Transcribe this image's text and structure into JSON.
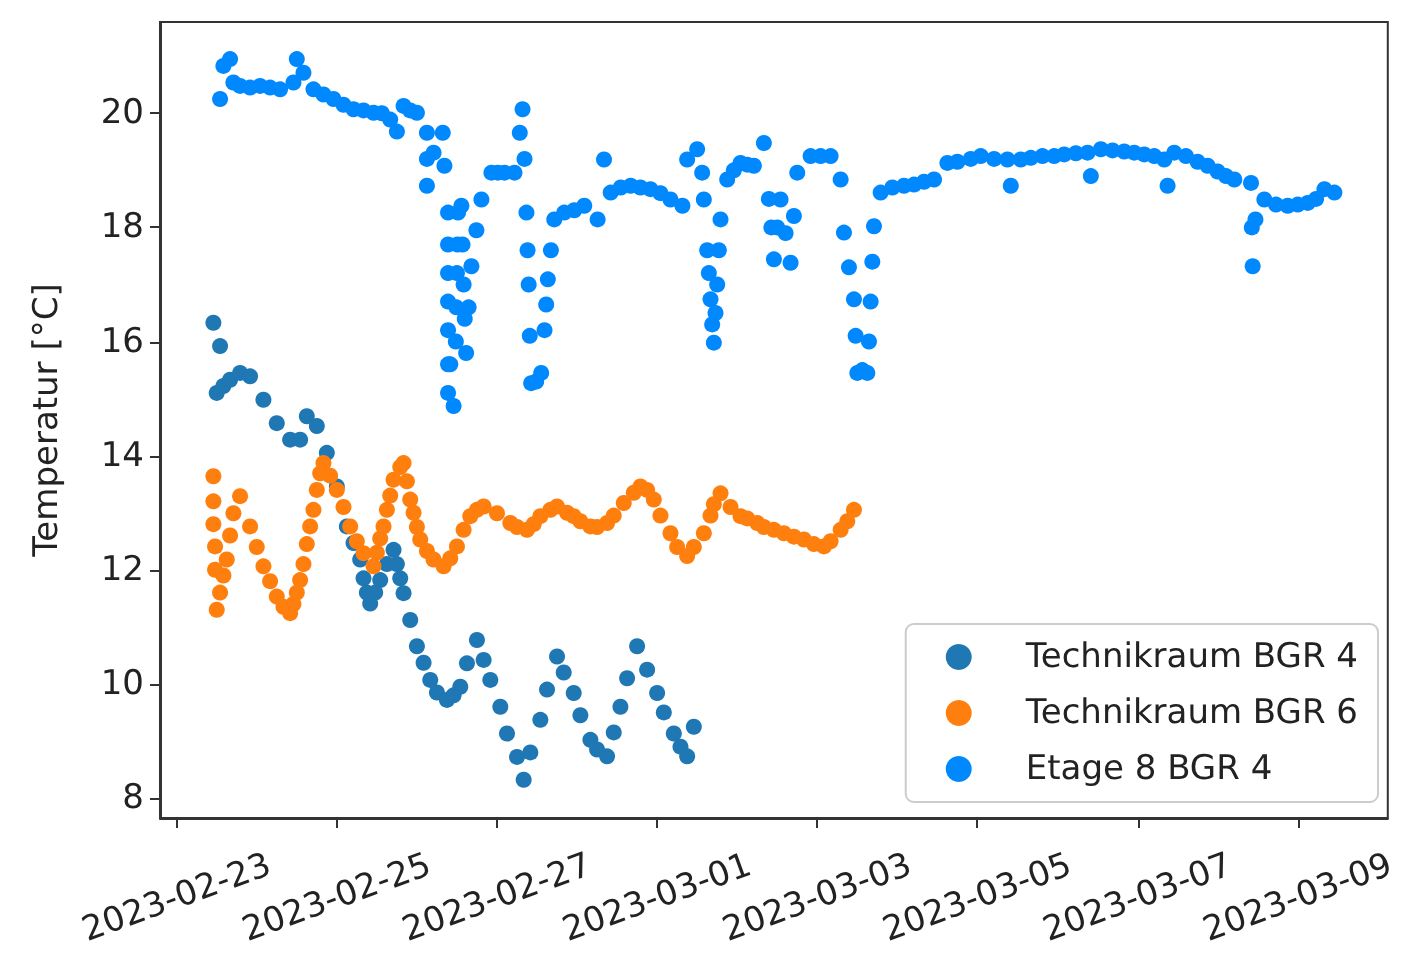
{
  "chart_data": {
    "type": "scatter",
    "ylabel": "Temperatur [°C]",
    "xlim": [
      "2023-02-22T19:00",
      "2023-03-10T03:00"
    ],
    "xticks": [
      "2023-02-23",
      "2023-02-25",
      "2023-02-27",
      "2023-03-01",
      "2023-03-03",
      "2023-03-05",
      "2023-03-07",
      "2023-03-09"
    ],
    "ylim": [
      7.65,
      21.6
    ],
    "yticks": [
      8,
      10,
      12,
      14,
      16,
      18,
      20
    ],
    "grid": false,
    "legend": "bottom right",
    "marker": "circle",
    "series": [
      {
        "name": "Technikraum BGR 4",
        "color": "#1f77b4",
        "x": [
          "2023-02-23T11:00",
          "2023-02-23T12:00",
          "2023-02-23T13:00",
          "2023-02-23T14:00",
          "2023-02-23T16:00",
          "2023-02-23T19:00",
          "2023-02-23T22:00",
          "2023-02-24T02:00",
          "2023-02-24T06:00",
          "2023-02-24T10:00",
          "2023-02-24T13:00",
          "2023-02-24T15:00",
          "2023-02-24T18:00",
          "2023-02-24T21:00",
          "2023-02-25T00:00",
          "2023-02-25T03:00",
          "2023-02-25T05:00",
          "2023-02-25T07:00",
          "2023-02-25T08:00",
          "2023-02-25T09:00",
          "2023-02-25T10:00",
          "2023-02-25T11:30",
          "2023-02-25T13:00",
          "2023-02-25T15:00",
          "2023-02-25T17:00",
          "2023-02-25T18:00",
          "2023-02-25T19:00",
          "2023-02-25T20:00",
          "2023-02-25T22:00",
          "2023-02-26T00:00",
          "2023-02-26T02:00",
          "2023-02-26T04:00",
          "2023-02-26T06:00",
          "2023-02-26T09:00",
          "2023-02-26T11:00",
          "2023-02-26T13:00",
          "2023-02-26T15:00",
          "2023-02-26T18:00",
          "2023-02-26T20:00",
          "2023-02-26T22:00",
          "2023-02-27T01:00",
          "2023-02-27T03:00",
          "2023-02-27T06:00",
          "2023-02-27T08:00",
          "2023-02-27T10:00",
          "2023-02-27T13:00",
          "2023-02-27T15:00",
          "2023-02-27T18:00",
          "2023-02-27T20:00",
          "2023-02-27T23:00",
          "2023-02-28T01:00",
          "2023-02-28T04:00",
          "2023-02-28T06:00",
          "2023-02-28T09:00",
          "2023-02-28T11:00",
          "2023-02-28T13:00",
          "2023-02-28T15:00",
          "2023-02-28T18:00",
          "2023-02-28T21:00",
          "2023-03-01T00:00",
          "2023-03-01T02:00",
          "2023-03-01T05:00",
          "2023-03-01T07:00",
          "2023-03-01T09:00",
          "2023-03-01T11:00"
        ],
        "values": [
          16.33,
          15.1,
          15.92,
          15.22,
          15.33,
          15.45,
          15.39,
          14.98,
          14.57,
          14.28,
          14.28,
          14.69,
          14.52,
          14.05,
          13.46,
          12.76,
          12.47,
          12.18,
          11.85,
          11.6,
          11.41,
          11.6,
          11.82,
          12.1,
          12.35,
          12.1,
          11.85,
          11.59,
          11.12,
          10.66,
          10.37,
          10.07,
          9.85,
          9.72,
          9.8,
          9.95,
          10.36,
          10.77,
          10.42,
          10.07,
          9.6,
          9.13,
          8.72,
          8.32,
          8.8,
          9.37,
          9.9,
          10.48,
          10.2,
          9.84,
          9.45,
          9.02,
          8.85,
          8.73,
          9.15,
          9.6,
          10.1,
          10.66,
          10.25,
          9.84,
          9.5,
          9.13,
          8.9,
          8.73,
          9.25
        ]
      },
      {
        "name": "Technikraum BGR 6",
        "color": "#ff7f0e",
        "x": [
          "2023-02-23T11:00",
          "2023-02-23T11:00",
          "2023-02-23T11:00",
          "2023-02-23T11:30",
          "2023-02-23T11:30",
          "2023-02-23T12:00",
          "2023-02-23T13:00",
          "2023-02-23T14:00",
          "2023-02-23T15:00",
          "2023-02-23T16:00",
          "2023-02-23T17:00",
          "2023-02-23T19:00",
          "2023-02-23T22:00",
          "2023-02-24T00:00",
          "2023-02-24T02:00",
          "2023-02-24T04:00",
          "2023-02-24T06:00",
          "2023-02-24T08:00",
          "2023-02-24T10:00",
          "2023-02-24T11:00",
          "2023-02-24T12:00",
          "2023-02-24T13:00",
          "2023-02-24T14:00",
          "2023-02-24T15:00",
          "2023-02-24T16:00",
          "2023-02-24T17:00",
          "2023-02-24T18:00",
          "2023-02-24T19:00",
          "2023-02-24T20:00",
          "2023-02-24T22:00",
          "2023-02-25T00:00",
          "2023-02-25T02:00",
          "2023-02-25T04:00",
          "2023-02-25T06:00",
          "2023-02-25T08:00",
          "2023-02-25T11:00",
          "2023-02-25T12:00",
          "2023-02-25T13:00",
          "2023-02-25T14:00",
          "2023-02-25T15:00",
          "2023-02-25T16:00",
          "2023-02-25T17:00",
          "2023-02-25T19:00",
          "2023-02-25T20:00",
          "2023-02-25T21:00",
          "2023-02-25T22:00",
          "2023-02-25T23:00",
          "2023-02-26T00:00",
          "2023-02-26T01:00",
          "2023-02-26T03:00",
          "2023-02-26T05:00",
          "2023-02-26T08:00",
          "2023-02-26T10:00",
          "2023-02-26T12:00",
          "2023-02-26T14:00",
          "2023-02-26T16:00",
          "2023-02-26T18:00",
          "2023-02-26T20:00",
          "2023-02-27T00:00",
          "2023-02-27T04:00",
          "2023-02-27T06:00",
          "2023-02-27T09:00",
          "2023-02-27T11:00",
          "2023-02-27T13:00",
          "2023-02-27T16:00",
          "2023-02-27T18:00",
          "2023-02-27T21:00",
          "2023-02-27T23:00",
          "2023-02-28T01:00",
          "2023-02-28T04:00",
          "2023-02-28T06:00",
          "2023-02-28T09:00",
          "2023-02-28T11:00",
          "2023-02-28T14:00",
          "2023-02-28T17:00",
          "2023-02-28T19:00",
          "2023-02-28T21:00",
          "2023-02-28T23:00",
          "2023-03-01T01:00",
          "2023-03-01T04:00",
          "2023-03-01T06:00",
          "2023-03-01T09:00",
          "2023-03-01T11:00",
          "2023-03-01T14:00",
          "2023-03-01T16:00",
          "2023-03-01T17:00",
          "2023-03-01T19:00",
          "2023-03-01T22:00",
          "2023-03-02T01:00",
          "2023-03-02T03:00",
          "2023-03-02T06:00",
          "2023-03-02T08:00",
          "2023-03-02T11:00",
          "2023-03-02T14:00",
          "2023-03-02T17:00",
          "2023-03-02T20:00",
          "2023-03-02T23:00",
          "2023-03-03T02:00",
          "2023-03-03T04:00",
          "2023-03-03T07:00",
          "2023-03-03T09:00",
          "2023-03-03T11:00"
        ],
        "values": [
          13.64,
          13.2,
          12.8,
          12.41,
          12.0,
          11.3,
          11.6,
          11.9,
          12.18,
          12.6,
          12.99,
          13.29,
          12.76,
          12.4,
          12.06,
          11.8,
          11.53,
          11.35,
          11.24,
          11.4,
          11.6,
          11.82,
          12.1,
          12.45,
          12.76,
          13.05,
          13.4,
          13.69,
          13.87,
          13.65,
          13.4,
          13.1,
          12.76,
          12.5,
          12.29,
          12.06,
          12.3,
          12.55,
          12.76,
          13.05,
          13.3,
          13.58,
          13.8,
          13.87,
          13.55,
          13.23,
          13.0,
          12.75,
          12.53,
          12.33,
          12.18,
          12.06,
          12.2,
          12.41,
          12.7,
          12.94,
          13.05,
          13.11,
          12.99,
          12.82,
          12.75,
          12.7,
          12.8,
          12.94,
          13.05,
          13.11,
          13.0,
          12.94,
          12.85,
          12.76,
          12.75,
          12.82,
          12.95,
          13.17,
          13.35,
          13.46,
          13.4,
          13.23,
          12.95,
          12.64,
          12.4,
          12.24,
          12.4,
          12.64,
          12.95,
          13.15,
          13.34,
          13.1,
          12.94,
          12.9,
          12.82,
          12.75,
          12.7,
          12.64,
          12.58,
          12.53,
          12.45,
          12.41,
          12.5,
          12.7,
          12.85,
          13.05
        ]
      },
      {
        "name": "Etage 8 BGR 4",
        "color": "#0088ff",
        "x": [
          "2023-02-23T13:00",
          "2023-02-23T14:00",
          "2023-02-23T16:00",
          "2023-02-23T17:00",
          "2023-02-23T19:00",
          "2023-02-23T22:00",
          "2023-02-24T01:00",
          "2023-02-24T04:00",
          "2023-02-24T07:00",
          "2023-02-24T11:00",
          "2023-02-24T12:00",
          "2023-02-24T14:00",
          "2023-02-24T17:00",
          "2023-02-24T20:00",
          "2023-02-24T23:00",
          "2023-02-25T02:00",
          "2023-02-25T05:00",
          "2023-02-25T08:00",
          "2023-02-25T11:00",
          "2023-02-25T13:30",
          "2023-02-25T16:00",
          "2023-02-25T18:00",
          "2023-02-25T20:00",
          "2023-02-25T22:00",
          "2023-02-26T00:00",
          "2023-02-26T03:00",
          "2023-02-26T03:00",
          "2023-02-26T03:00",
          "2023-02-26T05:00",
          "2023-02-26T07:45",
          "2023-02-26T08:15",
          "2023-02-26T09:20",
          "2023-02-26T09:20",
          "2023-02-26T09:20",
          "2023-02-26T09:20",
          "2023-02-26T09:20",
          "2023-02-26T09:20",
          "2023-02-26T09:20",
          "2023-02-26T10:00",
          "2023-02-26T11:00",
          "2023-02-26T11:40",
          "2023-02-26T11:50",
          "2023-02-26T12:00",
          "2023-02-26T12:10",
          "2023-02-26T12:20",
          "2023-02-26T13:20",
          "2023-02-26T13:40",
          "2023-02-26T14:00",
          "2023-02-26T14:20",
          "2023-02-26T14:45",
          "2023-02-26T15:30",
          "2023-02-26T16:20",
          "2023-02-26T17:50",
          "2023-02-26T19:20",
          "2023-02-26T22:20",
          "2023-02-27T00:15",
          "2023-02-27T02:15",
          "2023-02-27T05:15",
          "2023-02-27T06:50",
          "2023-02-27T07:40",
          "2023-02-27T08:15",
          "2023-02-27T08:50",
          "2023-02-27T09:10",
          "2023-02-27T09:30",
          "2023-02-27T09:50",
          "2023-02-27T10:15",
          "2023-02-27T11:45",
          "2023-02-27T13:15",
          "2023-02-27T14:15",
          "2023-02-27T14:45",
          "2023-02-27T15:15",
          "2023-02-27T16:10",
          "2023-02-27T17:10",
          "2023-02-27T20:10",
          "2023-02-27T23:10",
          "2023-02-28T02:10",
          "2023-02-28T06:10",
          "2023-02-28T08:05",
          "2023-02-28T10:05",
          "2023-02-28T13:05",
          "2023-02-28T16:05",
          "2023-02-28T19:00",
          "2023-02-28T22:00",
          "2023-03-01T01:00",
          "2023-03-01T04:00",
          "2023-03-01T07:35",
          "2023-03-01T09:00",
          "2023-03-01T12:00",
          "2023-03-01T13:30",
          "2023-03-01T14:00",
          "2023-03-01T15:00",
          "2023-03-01T15:30",
          "2023-03-01T16:00",
          "2023-03-01T16:30",
          "2023-03-01T17:00",
          "2023-03-01T17:30",
          "2023-03-01T18:00",
          "2023-03-01T18:30",
          "2023-03-01T19:00",
          "2023-03-01T21:00",
          "2023-03-01T23:00",
          "2023-03-02T01:00",
          "2023-03-02T03:00",
          "2023-03-02T05:00",
          "2023-03-02T08:00",
          "2023-03-02T09:30",
          "2023-03-02T10:15",
          "2023-03-02T11:00",
          "2023-03-02T12:00",
          "2023-03-02T13:00",
          "2023-03-02T14:30",
          "2023-03-02T16:00",
          "2023-03-02T17:00",
          "2023-03-02T18:00",
          "2023-03-02T22:00",
          "2023-03-03T01:00",
          "2023-03-03T04:00",
          "2023-03-03T07:00",
          "2023-03-03T08:00",
          "2023-03-03T09:30",
          "2023-03-03T11:00",
          "2023-03-03T11:30",
          "2023-03-03T12:00",
          "2023-03-03T13:30",
          "2023-03-03T15:00",
          "2023-03-03T15:30",
          "2023-03-03T16:00",
          "2023-03-03T16:30",
          "2023-03-03T17:00",
          "2023-03-03T19:00",
          "2023-03-03T22:30",
          "2023-03-04T02:00",
          "2023-03-04T05:00",
          "2023-03-04T08:00",
          "2023-03-04T11:00",
          "2023-03-04T15:00",
          "2023-03-04T18:00",
          "2023-03-04T22:00",
          "2023-03-05T01:00",
          "2023-03-05T05:00",
          "2023-03-05T09:00",
          "2023-03-05T10:00",
          "2023-03-05T13:00",
          "2023-03-05T16:00",
          "2023-03-05T19:30",
          "2023-03-05T23:00",
          "2023-03-06T02:00",
          "2023-03-06T05:30",
          "2023-03-06T09:00",
          "2023-03-06T10:00",
          "2023-03-06T13:00",
          "2023-03-06T16:30",
          "2023-03-06T20:00",
          "2023-03-06T23:00",
          "2023-03-07T02:00",
          "2023-03-07T05:00",
          "2023-03-07T08:00",
          "2023-03-07T09:00",
          "2023-03-07T11:00",
          "2023-03-07T14:30",
          "2023-03-07T18:00",
          "2023-03-07T21:00",
          "2023-03-08T00:00",
          "2023-03-08T02:30",
          "2023-03-08T05:00",
          "2023-03-08T10:00",
          "2023-03-08T10:15",
          "2023-03-08T10:30",
          "2023-03-08T11:20",
          "2023-03-08T14:00",
          "2023-03-08T17:30",
          "2023-03-08T21:00",
          "2023-03-09T00:00",
          "2023-03-09T03:00",
          "2023-03-09T05:30",
          "2023-03-09T08:00",
          "2023-03-09T11:00"
        ],
        "values": [
          20.25,
          20.83,
          20.95,
          20.54,
          20.48,
          20.45,
          20.48,
          20.45,
          20.42,
          20.54,
          20.95,
          20.71,
          20.42,
          20.33,
          20.25,
          20.15,
          20.07,
          20.05,
          20.01,
          20.0,
          19.89,
          19.68,
          20.13,
          20.05,
          20.01,
          19.66,
          19.2,
          18.73,
          19.31,
          19.66,
          19.08,
          18.26,
          17.7,
          17.2,
          16.7,
          16.2,
          15.6,
          15.1,
          15.6,
          14.87,
          16.0,
          16.6,
          17.2,
          17.7,
          18.26,
          18.38,
          17.7,
          17.0,
          16.4,
          15.8,
          16.6,
          17.32,
          17.95,
          18.49,
          18.96,
          18.96,
          18.96,
          18.96,
          19.66,
          20.07,
          19.2,
          18.26,
          17.6,
          17.0,
          16.1,
          15.27,
          15.3,
          15.45,
          16.2,
          16.65,
          17.09,
          17.6,
          18.14,
          18.26,
          18.3,
          18.38,
          18.14,
          19.19,
          18.61,
          18.7,
          18.73,
          18.7,
          18.67,
          18.6,
          18.49,
          18.38,
          19.19,
          19.37,
          18.96,
          18.49,
          17.6,
          17.2,
          16.74,
          16.3,
          15.98,
          16.5,
          17.0,
          17.6,
          18.14,
          18.84,
          19.0,
          19.13,
          19.1,
          19.08,
          19.48,
          18.5,
          18.0,
          17.44,
          18.0,
          18.49,
          17.9,
          17.38,
          18.2,
          18.96,
          19.25,
          19.25,
          19.25,
          18.84,
          17.91,
          17.3,
          16.74,
          16.1,
          15.45,
          15.5,
          15.45,
          16.0,
          16.7,
          17.4,
          18.02,
          18.61,
          18.7,
          18.73,
          18.75,
          18.8,
          18.84,
          19.13,
          19.15,
          19.2,
          19.25,
          19.2,
          19.19,
          18.73,
          19.19,
          19.22,
          19.25,
          19.25,
          19.28,
          19.3,
          19.31,
          18.9,
          19.37,
          19.35,
          19.33,
          19.31,
          19.28,
          19.25,
          19.19,
          18.73,
          19.31,
          19.25,
          19.15,
          19.08,
          18.98,
          18.9,
          18.84,
          18.78,
          18.0,
          17.32,
          18.14,
          18.49,
          18.4,
          18.38,
          18.4,
          18.43,
          18.5,
          18.67,
          18.61
        ]
      }
    ]
  }
}
